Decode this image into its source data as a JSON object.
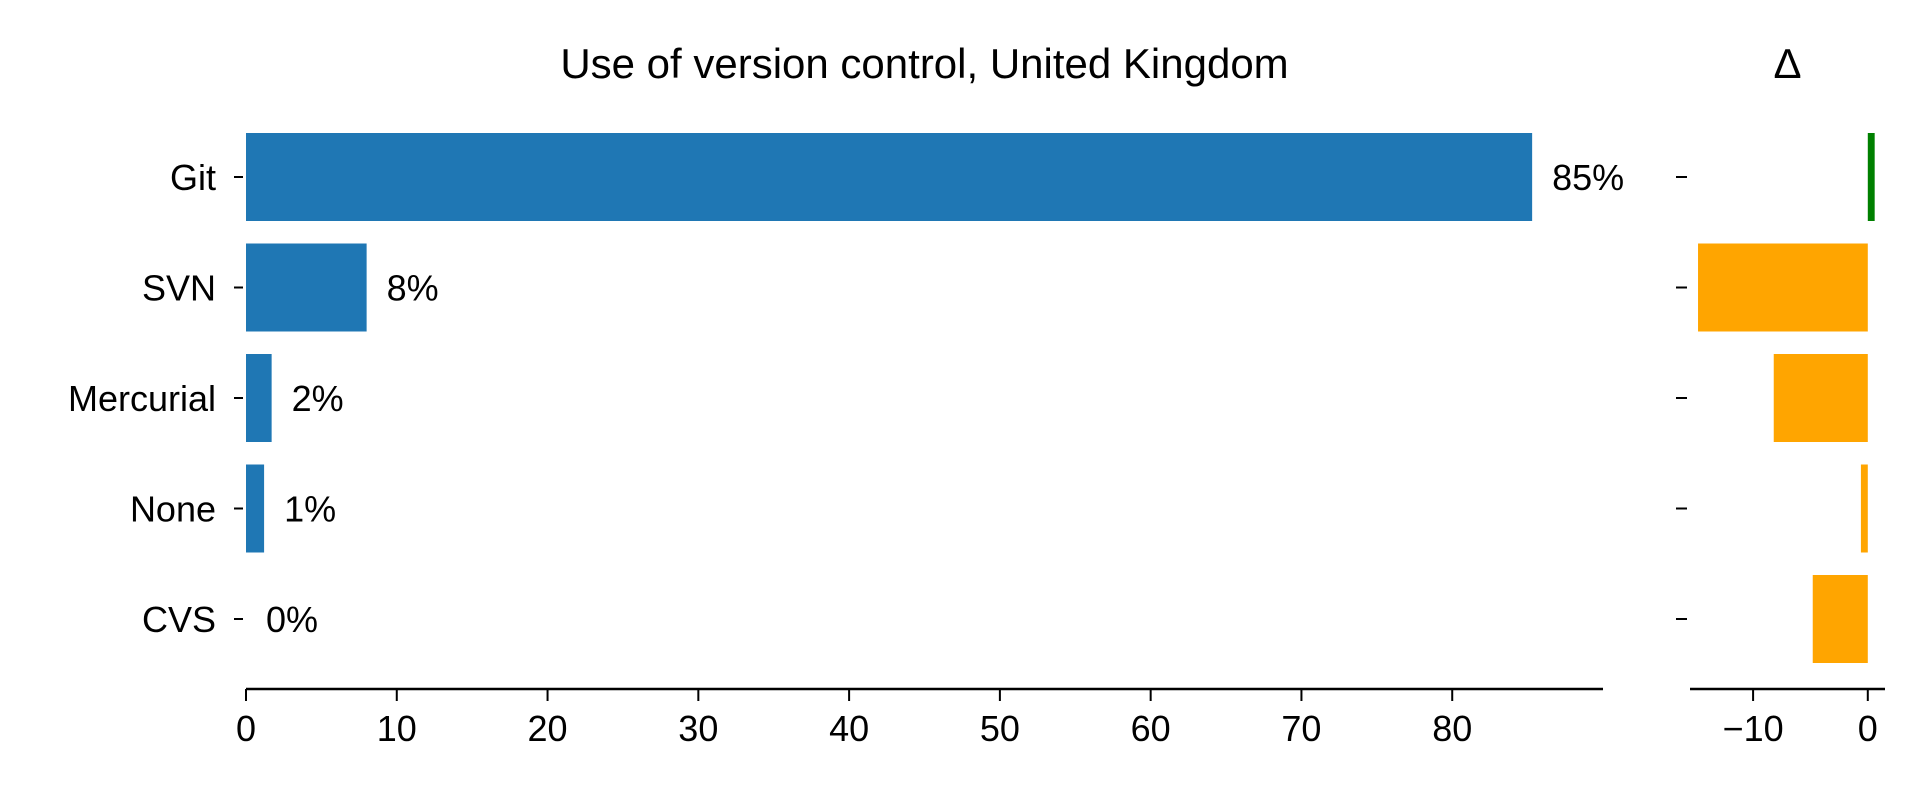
{
  "chart_data": [
    {
      "type": "bar",
      "orientation": "horizontal",
      "title": "Use of version control, United Kingdom",
      "categories": [
        "Git",
        "SVN",
        "Mercurial",
        "None",
        "CVS"
      ],
      "values": [
        85.3,
        8.0,
        1.7,
        1.2,
        0.0
      ],
      "value_labels": [
        "85%",
        "8%",
        "2%",
        "1%",
        "0%"
      ],
      "xlim": [
        0,
        90
      ],
      "xticks": [
        0,
        10,
        20,
        30,
        40,
        50,
        60,
        70,
        80
      ],
      "xtick_labels": [
        "0",
        "10",
        "20",
        "30",
        "40",
        "50",
        "60",
        "70",
        "80"
      ],
      "bar_color": "#1f77b4",
      "grid": false
    },
    {
      "type": "bar",
      "orientation": "horizontal",
      "title": "Δ",
      "categories": [
        "Git",
        "SVN",
        "Mercurial",
        "None",
        "CVS"
      ],
      "values": [
        0.6,
        -14.8,
        -8.2,
        -0.6,
        -4.8
      ],
      "xlim": [
        -15.5,
        1.5
      ],
      "xticks": [
        -10,
        0
      ],
      "xtick_labels": [
        "−10",
        "0"
      ],
      "positive_color": "#008000",
      "negative_color": "#ffa500",
      "grid": false
    }
  ]
}
